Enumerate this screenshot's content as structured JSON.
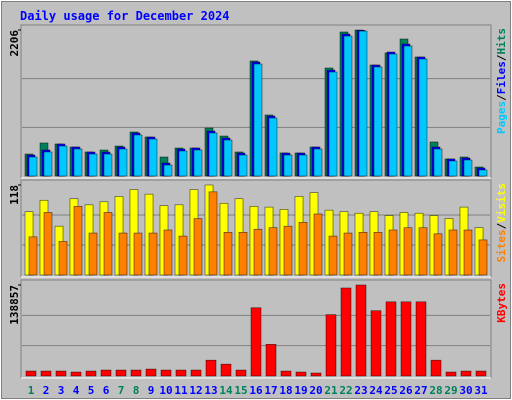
{
  "chart_data": [
    {
      "type": "bar",
      "title": "Daily usage for December 2024",
      "ylim": [
        0,
        2206
      ],
      "yticks": [
        2206
      ],
      "legend_separator": "/",
      "series": [
        {
          "name": "Hits",
          "color": "#00805c",
          "values": [
            332,
            499,
            484,
            438,
            363,
            393,
            453,
            665,
            589,
            287,
            423,
            423,
            725,
            604,
            363,
            1738,
            922,
            348,
            348,
            438,
            1632,
            2176,
            2206,
            1677,
            1859,
            2070,
            1798,
            514,
            257,
            287,
            136
          ]
        },
        {
          "name": "Files",
          "color": "#0000ff",
          "values": [
            317,
            393,
            483,
            438,
            362,
            362,
            438,
            650,
            589,
            196,
            408,
            423,
            680,
            574,
            347,
            1722,
            906,
            347,
            347,
            438,
            1601,
            2145,
            2200,
            1677,
            1873,
            1994,
            1798,
            438,
            257,
            272,
            121
          ]
        },
        {
          "name": "Pages",
          "color": "#00c8ff",
          "values": [
            287,
            363,
            453,
            408,
            332,
            332,
            408,
            620,
            559,
            166,
            378,
            393,
            650,
            544,
            317,
            1692,
            876,
            317,
            317,
            408,
            1571,
            2115,
            2190,
            1647,
            1843,
            1964,
            1768,
            408,
            227,
            242,
            91
          ]
        }
      ]
    },
    {
      "type": "bar",
      "ylim": [
        0,
        118
      ],
      "yticks": [
        118
      ],
      "legend_separator": "/",
      "series": [
        {
          "name": "Visits",
          "color": "#ffff00",
          "values": [
            83,
            98,
            64,
            100,
            92,
            96,
            103,
            112,
            106,
            91,
            92,
            112,
            118,
            94,
            100,
            90,
            89,
            86,
            103,
            108,
            85,
            83,
            81,
            83,
            78,
            82,
            81,
            78,
            74,
            89,
            62
          ]
        },
        {
          "name": "Sites",
          "color": "#ff8000",
          "values": [
            50,
            82,
            44,
            90,
            55,
            82,
            55,
            55,
            55,
            59,
            51,
            74,
            109,
            56,
            56,
            60,
            62,
            64,
            69,
            80,
            51,
            55,
            56,
            56,
            59,
            62,
            62,
            54,
            59,
            59,
            46
          ]
        }
      ]
    },
    {
      "type": "bar",
      "ylim": [
        0,
        138857
      ],
      "yticks": [
        138857
      ],
      "series": [
        {
          "name": "KBytes",
          "color": "#ff0000",
          "values": [
            7545,
            7545,
            7545,
            6036,
            7545,
            9054,
            9054,
            9054,
            10563,
            9054,
            9054,
            9054,
            24144,
            18108,
            9054,
            104121,
            48288,
            7545,
            6036,
            4527,
            93558,
            134301,
            138857,
            99594,
            113175,
            113175,
            113175,
            24144,
            6036,
            7545,
            7545
          ]
        }
      ],
      "categories": [
        "1",
        "2",
        "3",
        "4",
        "5",
        "6",
        "7",
        "8",
        "9",
        "10",
        "11",
        "12",
        "13",
        "14",
        "15",
        "16",
        "17",
        "18",
        "19",
        "20",
        "21",
        "22",
        "23",
        "24",
        "25",
        "26",
        "27",
        "28",
        "29",
        "30",
        "31"
      ],
      "category_colors": [
        "#00805c",
        "#0000ff",
        "#0000ff",
        "#0000ff",
        "#0000ff",
        "#0000ff",
        "#00805c",
        "#00805c",
        "#0000ff",
        "#0000ff",
        "#0000ff",
        "#0000ff",
        "#0000ff",
        "#00805c",
        "#00805c",
        "#0000ff",
        "#0000ff",
        "#0000ff",
        "#0000ff",
        "#0000ff",
        "#00805c",
        "#00805c",
        "#0000ff",
        "#0000ff",
        "#0000ff",
        "#0000ff",
        "#0000ff",
        "#00805c",
        "#00805c",
        "#0000ff",
        "#0000ff"
      ]
    }
  ]
}
